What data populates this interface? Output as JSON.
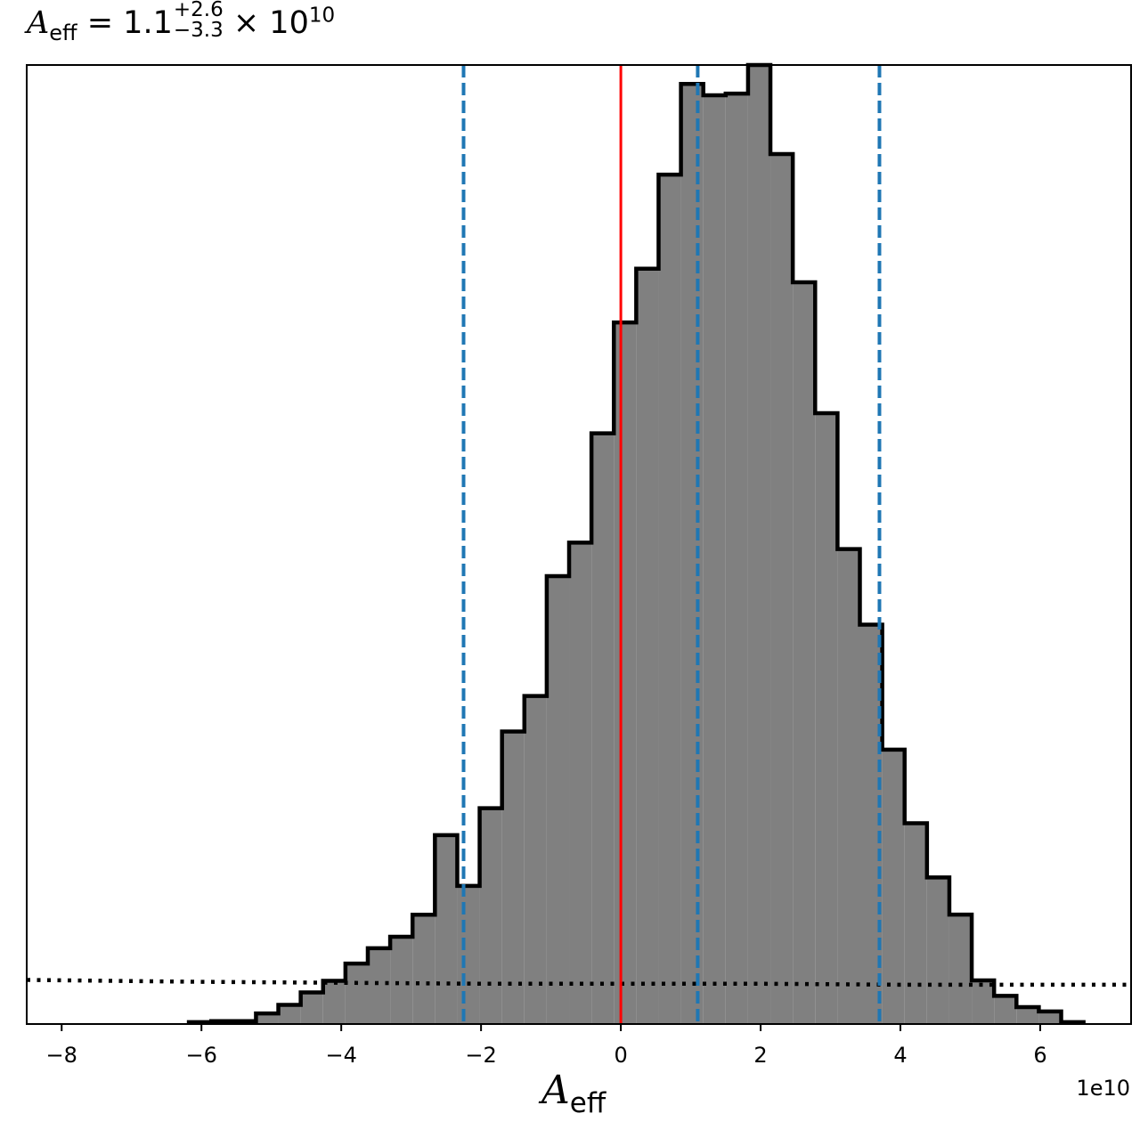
{
  "chart_data": {
    "type": "histogram",
    "title": {
      "symbol": "A",
      "subscript": "eff",
      "equals": "= 1.1",
      "upper": "+2.6",
      "lower": "−3.3",
      "times": "× 10",
      "exponent": "10"
    },
    "xlabel": {
      "symbol": "A",
      "subscript": "eff"
    },
    "x_offset_label": "1e10",
    "xlim": [
      -8.5,
      7.3
    ],
    "x_scale_note": "values in units of 1e10",
    "xticks": [
      -8,
      -6,
      -4,
      -2,
      0,
      2,
      4,
      6
    ],
    "xtick_labels": [
      "−8",
      "−6",
      "−4",
      "−2",
      "0",
      "2",
      "4",
      "6"
    ],
    "ylim": [
      0,
      1.0
    ],
    "y_ticks_shown": false,
    "bin_edges": [
      -6.18,
      -5.86,
      -5.54,
      -5.22,
      -4.9,
      -4.58,
      -4.26,
      -3.94,
      -3.62,
      -3.3,
      -2.98,
      -2.66,
      -2.34,
      -2.02,
      -1.7,
      -1.38,
      -1.06,
      -0.74,
      -0.42,
      -0.1,
      0.22,
      0.54,
      0.86,
      1.18,
      1.5,
      1.82,
      2.14,
      2.46,
      2.78,
      3.1,
      3.42,
      3.74,
      4.06,
      4.38,
      4.7,
      5.02,
      5.34,
      5.66,
      5.98,
      6.3,
      6.62
    ],
    "bin_heights": [
      0.002,
      0.003,
      0.003,
      0.011,
      0.02,
      0.033,
      0.045,
      0.063,
      0.079,
      0.091,
      0.114,
      0.197,
      0.144,
      0.225,
      0.305,
      0.342,
      0.467,
      0.502,
      0.616,
      0.7316,
      0.7876,
      0.8857,
      0.9803,
      0.9684,
      0.9702,
      1.0,
      0.9071,
      0.7734,
      0.6369,
      0.4952,
      0.4164,
      0.2861,
      0.2094,
      0.1529,
      0.1141,
      0.0455,
      0.0294,
      0.0176,
      0.0131,
      0.002
    ],
    "bar_fill": "#808080",
    "bar_edge": "#000000",
    "vlines": [
      {
        "x": 0.0,
        "color": "#ff0000",
        "style": "solid"
      },
      {
        "x": -2.25,
        "color": "#1f77b4",
        "style": "dashed"
      },
      {
        "x": 1.1,
        "color": "#1f77b4",
        "style": "dashed"
      },
      {
        "x": 3.7,
        "color": "#1f77b4",
        "style": "dashed"
      }
    ],
    "prior_line": {
      "color": "#000000",
      "style": "dotted",
      "x": [
        -8.5,
        -6,
        -4,
        -2,
        0,
        2,
        4,
        6,
        7.3
      ],
      "y": [
        0.046,
        0.044,
        0.043,
        0.042,
        0.042,
        0.042,
        0.041,
        0.041,
        0.041
      ]
    },
    "grid": false,
    "legend": "none"
  }
}
